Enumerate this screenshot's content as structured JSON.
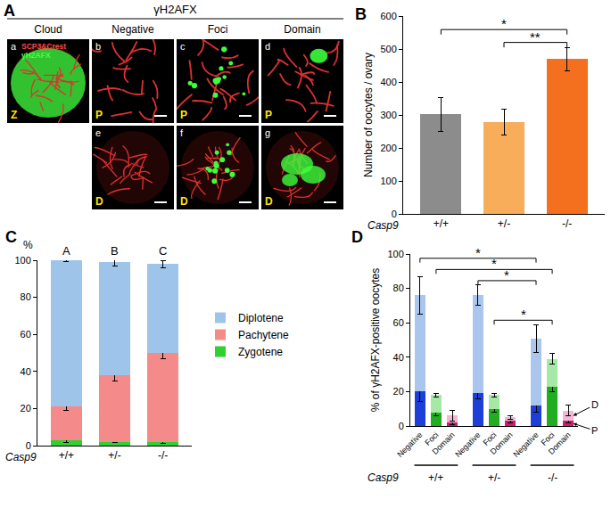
{
  "image_panel": {
    "panel": "A",
    "header": "γH2AFX",
    "columns": [
      "Cloud",
      "Negative",
      "Foci",
      "Domain"
    ],
    "stain_labels": [
      {
        "text": "SCP3&Crest",
        "color": "#ff4a4a"
      },
      {
        "text": "γH2AFX",
        "color": "#45ff45"
      }
    ],
    "rows": [
      [
        {
          "id": "a",
          "column": "Cloud",
          "stage": "Z"
        },
        {
          "id": "b",
          "column": "Negative",
          "stage": "P"
        },
        {
          "id": "c",
          "column": "Foci",
          "stage": "P"
        },
        {
          "id": "d",
          "column": "Domain",
          "stage": "P"
        }
      ],
      [
        {
          "id": "e",
          "column": "Negative",
          "stage": "D"
        },
        {
          "id": "f",
          "column": "Foci",
          "stage": "D"
        },
        {
          "id": "g",
          "column": "Domain",
          "stage": "D"
        }
      ]
    ]
  },
  "chart_data": [
    {
      "panel": "B",
      "type": "bar",
      "categories": [
        "+/+",
        "+/-",
        "-/-"
      ],
      "values": [
        302,
        278,
        470
      ],
      "errors": [
        52,
        40,
        35
      ],
      "colors": [
        "#8c8c8c",
        "#f7ad5a",
        "#f46f1e"
      ],
      "xlabel": "Casp9",
      "ylabel": "Number of oocytes / ovary",
      "ylim": [
        0,
        600
      ],
      "yticks": [
        0,
        100,
        200,
        300,
        400,
        500,
        600
      ],
      "grid": false,
      "significance": [
        {
          "from": "+/-",
          "to": "-/-",
          "label": "**"
        },
        {
          "from": "+/+",
          "to": "-/-",
          "label": "*"
        }
      ]
    },
    {
      "panel": "C",
      "type": "bar",
      "stacked": true,
      "categories": [
        "+/+",
        "+/-",
        "-/-"
      ],
      "series": [
        {
          "name": "Zygotene",
          "color": "#2fd02f",
          "values": [
            3,
            2,
            2
          ],
          "errors": [
            1.5,
            0.5,
            1
          ]
        },
        {
          "name": "Pachytene",
          "color": "#f48a8a",
          "values": [
            18,
            36,
            48
          ],
          "errors": [
            2,
            3,
            3
          ]
        },
        {
          "name": "Diplotene",
          "color": "#9ec4ea",
          "values": [
            79,
            61,
            48
          ],
          "errors": [
            0.8,
            2,
            2
          ]
        }
      ],
      "annotations": [
        {
          "category": "+/+",
          "text": "A"
        },
        {
          "category": "+/-",
          "text": "B"
        },
        {
          "category": "-/-",
          "text": "C"
        }
      ],
      "xlabel": "Casp9",
      "ylabel": "%",
      "ylim": [
        0,
        100
      ],
      "yticks": [
        0,
        20,
        40,
        60,
        80,
        100
      ],
      "grid": false,
      "legend": "right"
    },
    {
      "panel": "D",
      "type": "bar",
      "stacked": true,
      "groups": [
        {
          "label": "+/+",
          "categories": [
            "Negative",
            "Foci",
            "Domain"
          ]
        },
        {
          "label": "+/-",
          "categories": [
            "Negative",
            "Foci",
            "Domain"
          ]
        },
        {
          "label": "-/-",
          "categories": [
            "Negative",
            "Foci",
            "Domain"
          ]
        }
      ],
      "series": [
        {
          "name": "P",
          "colors": [
            "#1c3fd8",
            "#1fae1f",
            "#d11a72",
            "#1c3fd8",
            "#1fae1f",
            "#d11a72",
            "#1c3fd8",
            "#1fae1f",
            "#d11a72"
          ],
          "values": [
            20,
            8,
            2,
            19,
            10,
            3,
            12,
            23,
            3
          ],
          "errors": [
            6,
            2,
            1,
            3,
            2,
            1,
            4,
            3,
            1
          ]
        },
        {
          "name": "D",
          "colors": [
            "#aac6ef",
            "#a6e8a6",
            "#f3b6d4",
            "#aac6ef",
            "#a6e8a6",
            "#f3b6d4",
            "#aac6ef",
            "#a6e8a6",
            "#f3b6d4"
          ],
          "values": [
            56,
            10,
            4,
            57,
            8,
            2,
            39,
            16,
            6
          ],
          "errors": [
            11,
            1,
            3,
            6,
            1,
            1,
            8,
            3,
            3
          ]
        }
      ],
      "xlabel": "Casp9",
      "ylabel": "% of γH2AFX-positive oocytes",
      "ylim": [
        0,
        100
      ],
      "yticks": [
        0,
        20,
        40,
        60,
        80,
        100
      ],
      "grid": false,
      "significance": [
        {
          "from": {
            "group": "+/-",
            "category": "Foci"
          },
          "to": {
            "group": "-/-",
            "category": "Foci"
          },
          "label": "*"
        },
        {
          "from": {
            "group": "+/-",
            "category": "Negative"
          },
          "to": {
            "group": "-/-",
            "category": "Negative"
          },
          "label": "*"
        },
        {
          "from": {
            "group": "+/+",
            "category": "Foci"
          },
          "to": {
            "group": "-/-",
            "category": "Foci"
          },
          "label": "*"
        },
        {
          "from": {
            "group": "+/+",
            "category": "Negative"
          },
          "to": {
            "group": "-/-",
            "category": "Negative"
          },
          "label": "*"
        }
      ]
    }
  ]
}
